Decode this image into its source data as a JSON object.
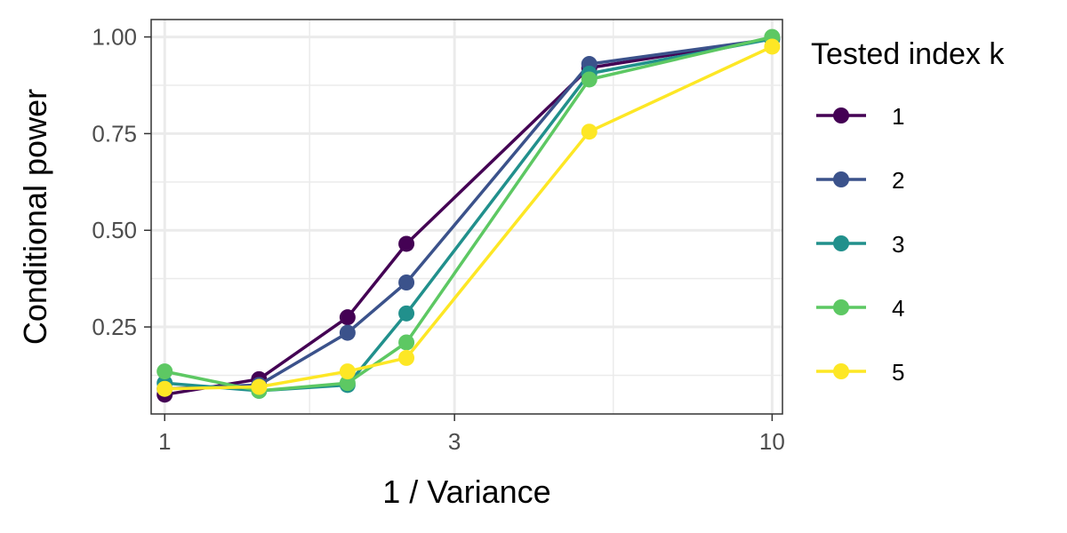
{
  "chart_data": {
    "type": "line",
    "title": "",
    "xlabel": "1 / Variance",
    "ylabel": "Conditional power",
    "x_scale": "log",
    "xlim": [
      0.95,
      10.4
    ],
    "ylim": [
      0.025,
      1.045
    ],
    "x_ticks": [
      1,
      3,
      10
    ],
    "x_tick_labels": [
      "1",
      "3",
      "10"
    ],
    "y_ticks": [
      0.25,
      0.5,
      0.75,
      1.0
    ],
    "y_tick_labels": [
      "0.25",
      "0.50",
      "0.75",
      "1.00"
    ],
    "grid": true,
    "legend": {
      "title": "Tested index k",
      "position": "right"
    },
    "x": [
      1,
      1.43,
      2,
      2.5,
      5,
      10
    ],
    "series": [
      {
        "name": "1",
        "color": "#440154",
        "values": [
          0.075,
          0.115,
          0.275,
          0.465,
          0.92,
          0.995
        ]
      },
      {
        "name": "2",
        "color": "#3B528B",
        "values": [
          0.09,
          0.1,
          0.235,
          0.365,
          0.93,
          0.995
        ]
      },
      {
        "name": "3",
        "color": "#21908C",
        "values": [
          0.105,
          0.085,
          0.1,
          0.285,
          0.905,
          0.995
        ]
      },
      {
        "name": "4",
        "color": "#5DC863",
        "values": [
          0.135,
          0.085,
          0.105,
          0.21,
          0.89,
          1.0
        ]
      },
      {
        "name": "5",
        "color": "#FDE725",
        "values": [
          0.09,
          0.095,
          0.135,
          0.17,
          0.755,
          0.975
        ]
      }
    ]
  }
}
